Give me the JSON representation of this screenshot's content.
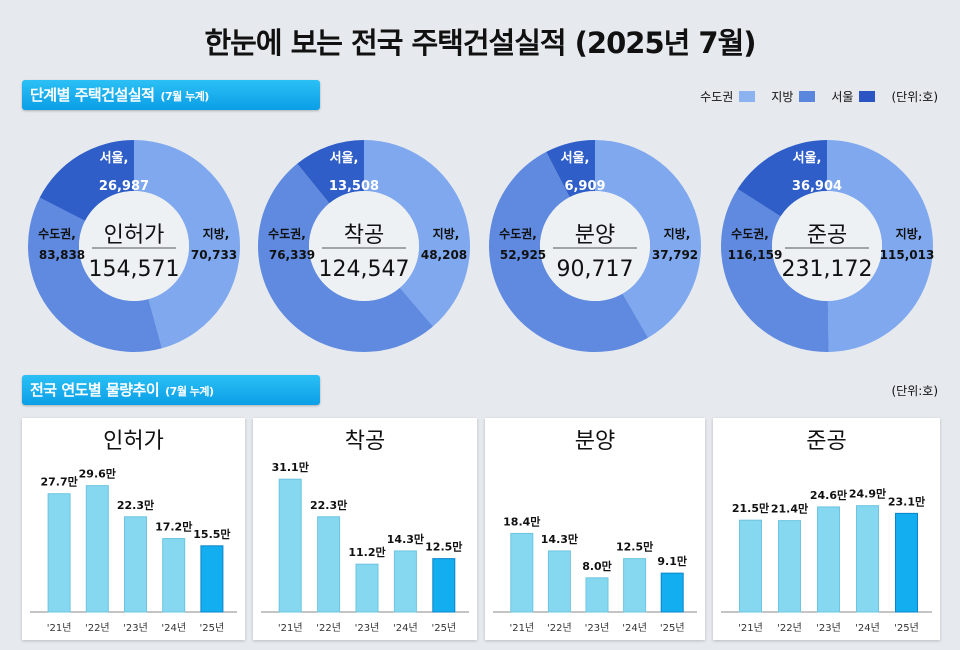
{
  "title": "한눈에 보는 전국 주택건설실적 (2025년 7월)",
  "section1": {
    "label": "단계별 주택건설실적",
    "sub": "(7월 누계)"
  },
  "legend": {
    "items": [
      {
        "label": "수도권",
        "color": "#8cb2f0"
      },
      {
        "label": "지방",
        "color": "#5a86de"
      },
      {
        "label": "서울",
        "color": "#2a55c2"
      }
    ],
    "unit": "(단위:호)"
  },
  "section2": {
    "label": "전국 연도별 물량추이",
    "sub": "(7월 누계)",
    "unit": "(단위:호)"
  },
  "colors": {
    "jibang_segment": "#7fa8ee",
    "sudo_segment": "#5f8ae0",
    "seoul_segment": "#2f5ec8",
    "bar": "#86d8f0",
    "bar_current": "#12aef0"
  },
  "chart_data": [
    {
      "type": "pie",
      "title": "인허가",
      "total": "154,571",
      "slices": [
        {
          "name": "지방",
          "value": 70733,
          "label": "지방,",
          "value_label": "70,733"
        },
        {
          "name": "수도권",
          "value": 83838,
          "label": "수도권,",
          "value_label": "83,838"
        },
        {
          "name": "서울",
          "value": 26987,
          "label": "서울,",
          "value_label": "26,987",
          "part_of": "수도권"
        }
      ]
    },
    {
      "type": "pie",
      "title": "착공",
      "total": "124,547",
      "slices": [
        {
          "name": "지방",
          "value": 48208,
          "label": "지방,",
          "value_label": "48,208"
        },
        {
          "name": "수도권",
          "value": 76339,
          "label": "수도권,",
          "value_label": "76,339"
        },
        {
          "name": "서울",
          "value": 13508,
          "label": "서울,",
          "value_label": "13,508",
          "part_of": "수도권"
        }
      ]
    },
    {
      "type": "pie",
      "title": "분양",
      "total": "90,717",
      "slices": [
        {
          "name": "지방",
          "value": 37792,
          "label": "지방,",
          "value_label": "37,792"
        },
        {
          "name": "수도권",
          "value": 52925,
          "label": "수도권,",
          "value_label": "52,925"
        },
        {
          "name": "서울",
          "value": 6909,
          "label": "서울,",
          "value_label": "6,909",
          "part_of": "수도권"
        }
      ]
    },
    {
      "type": "pie",
      "title": "준공",
      "total": "231,172",
      "slices": [
        {
          "name": "지방",
          "value": 115013,
          "label": "지방,",
          "value_label": "115,013"
        },
        {
          "name": "수도권",
          "value": 116159,
          "label": "수도권,",
          "value_label": "116,159"
        },
        {
          "name": "서울",
          "value": 36904,
          "label": "서울,",
          "value_label": "36,904",
          "part_of": "수도권"
        }
      ]
    },
    {
      "type": "bar",
      "title": "인허가",
      "categories": [
        "'21년",
        "'22년",
        "'23년",
        "'24년",
        "'25년"
      ],
      "values": [
        27.7,
        29.6,
        22.3,
        17.2,
        15.5
      ],
      "labels": [
        "27.7만",
        "29.6만",
        "22.3만",
        "17.2만",
        "15.5만"
      ],
      "ylim": [
        0,
        35
      ]
    },
    {
      "type": "bar",
      "title": "착공",
      "categories": [
        "'21년",
        "'22년",
        "'23년",
        "'24년",
        "'25년"
      ],
      "values": [
        31.1,
        22.3,
        11.2,
        14.3,
        12.5
      ],
      "labels": [
        "31.1만",
        "22.3만",
        "11.2만",
        "14.3만",
        "12.5만"
      ],
      "ylim": [
        0,
        35
      ]
    },
    {
      "type": "bar",
      "title": "분양",
      "categories": [
        "'21년",
        "'22년",
        "'23년",
        "'24년",
        "'25년"
      ],
      "values": [
        18.4,
        14.3,
        8.0,
        12.5,
        9.1
      ],
      "labels": [
        "18.4만",
        "14.3만",
        "8.0만",
        "12.5만",
        "9.1만"
      ],
      "ylim": [
        0,
        35
      ]
    },
    {
      "type": "bar",
      "title": "준공",
      "categories": [
        "'21년",
        "'22년",
        "'23년",
        "'24년",
        "'25년"
      ],
      "values": [
        21.5,
        21.4,
        24.6,
        24.9,
        23.1
      ],
      "labels": [
        "21.5만",
        "21.4만",
        "24.6만",
        "24.9만",
        "23.1만"
      ],
      "ylim": [
        0,
        35
      ]
    }
  ]
}
